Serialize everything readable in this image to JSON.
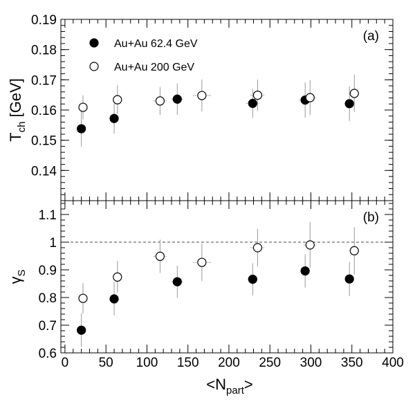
{
  "chart_data": {
    "type": "scatter",
    "x": {
      "range": [
        -5,
        400
      ],
      "ticks": [
        0,
        50,
        100,
        150,
        200,
        250,
        300,
        350,
        400
      ],
      "tick_labels": [
        "0",
        "50",
        "100",
        "150",
        "200",
        "250",
        "300",
        "350",
        "400"
      ],
      "title": {
        "prefix": "<N",
        "sub": "part",
        "suffix": ">"
      }
    },
    "panels": [
      {
        "id": "a",
        "label": "(a)",
        "ylabel": {
          "main": "T",
          "sub": "ch",
          "suffix": " [GeV]"
        },
        "ylim": [
          0.13,
          0.19
        ],
        "yticks": [
          0.14,
          0.15,
          0.16,
          0.17,
          0.18,
          0.19
        ],
        "ytick_labels": [
          "0.14",
          "0.15",
          "0.16",
          "0.17",
          "0.18",
          "0.19"
        ],
        "series": [
          {
            "name": "Au+Au 62.4 GeV",
            "marker": "filled-circle",
            "points": [
              {
                "x": 20,
                "y": 0.1538,
                "xerr": 0,
                "yerr": 0.006
              },
              {
                "x": 60,
                "y": 0.1572,
                "xerr": 5,
                "yerr": 0.005
              },
              {
                "x": 137,
                "y": 0.1636,
                "xerr": 7,
                "yerr": 0.0052
              },
              {
                "x": 229,
                "y": 0.1622,
                "xerr": 8,
                "yerr": 0.0048
              },
              {
                "x": 293,
                "y": 0.1633,
                "xerr": 8,
                "yerr": 0.0058
              },
              {
                "x": 347,
                "y": 0.1621,
                "xerr": 6,
                "yerr": 0.0057
              }
            ]
          },
          {
            "name": "Au+Au 200 GeV",
            "marker": "open-circle",
            "points": [
              {
                "x": 22,
                "y": 0.1609,
                "xerr": 3,
                "yerr": 0.004
              },
              {
                "x": 64,
                "y": 0.1634,
                "xerr": 5,
                "yerr": 0.0048
              },
              {
                "x": 116,
                "y": 0.163,
                "xerr": 8,
                "yerr": 0.0046
              },
              {
                "x": 167,
                "y": 0.1648,
                "xerr": 11,
                "yerr": 0.0053
              },
              {
                "x": 235,
                "y": 0.1649,
                "xerr": 9,
                "yerr": 0.0052
              },
              {
                "x": 299,
                "y": 0.1641,
                "xerr": 8,
                "yerr": 0.0058
              },
              {
                "x": 353,
                "y": 0.1655,
                "xerr": 6,
                "yerr": 0.0062
              }
            ]
          }
        ]
      },
      {
        "id": "b",
        "label": "(b)",
        "ylabel": {
          "main": "γ",
          "sub": "S",
          "suffix": ""
        },
        "ylim": [
          0.6,
          1.15
        ],
        "yticks": [
          0.6,
          0.7,
          0.8,
          0.9,
          1.0,
          1.1
        ],
        "ytick_labels": [
          "0.6",
          "0.7",
          "0.8",
          "0.9",
          "1",
          "1.1"
        ],
        "reference_line": 1.0,
        "series": [
          {
            "name": "Au+Au 62.4 GeV",
            "marker": "filled-circle",
            "points": [
              {
                "x": 20,
                "y": 0.682,
                "xerr": 0,
                "yerr": 0.06
              },
              {
                "x": 60,
                "y": 0.795,
                "xerr": 5,
                "yerr": 0.06
              },
              {
                "x": 137,
                "y": 0.857,
                "xerr": 7,
                "yerr": 0.058
              },
              {
                "x": 229,
                "y": 0.866,
                "xerr": 6,
                "yerr": 0.058
              },
              {
                "x": 293,
                "y": 0.896,
                "xerr": 6,
                "yerr": 0.06
              },
              {
                "x": 347,
                "y": 0.867,
                "xerr": 4,
                "yerr": 0.062
              }
            ]
          },
          {
            "name": "Au+Au 200 GeV",
            "marker": "open-circle",
            "points": [
              {
                "x": 22,
                "y": 0.797,
                "xerr": 3,
                "yerr": 0.055
              },
              {
                "x": 64,
                "y": 0.874,
                "xerr": 5,
                "yerr": 0.058
              },
              {
                "x": 116,
                "y": 0.949,
                "xerr": 8,
                "yerr": 0.06
              },
              {
                "x": 167,
                "y": 0.927,
                "xerr": 11,
                "yerr": 0.068
              },
              {
                "x": 235,
                "y": 0.98,
                "xerr": 9,
                "yerr": 0.068
              },
              {
                "x": 299,
                "y": 0.99,
                "xerr": 8,
                "yerr": 0.083
              },
              {
                "x": 353,
                "y": 0.969,
                "xerr": 6,
                "yerr": 0.085
              }
            ]
          }
        ]
      }
    ],
    "legend": {
      "position": "top-left",
      "entries": [
        {
          "label": "Au+Au 62.4 GeV",
          "marker": "filled-circle"
        },
        {
          "label": "Au+Au 200 GeV",
          "marker": "open-circle"
        }
      ]
    },
    "grid": false,
    "colors": {
      "marker": "#000000",
      "error_bar": "#999999",
      "reference_line": "#444444"
    }
  }
}
